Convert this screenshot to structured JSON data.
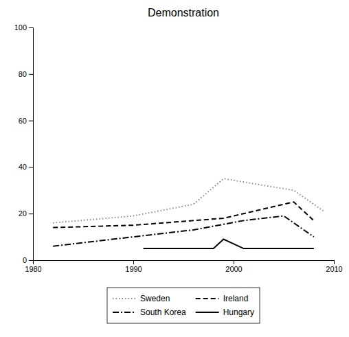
{
  "chart_data": {
    "type": "line",
    "title": "Demonstration",
    "xlim": [
      1980,
      2010
    ],
    "ylim": [
      0,
      100
    ],
    "xticks": [
      1980,
      1990,
      2000,
      2010
    ],
    "yticks": [
      0,
      20,
      40,
      60,
      80,
      100
    ],
    "grid": false,
    "legend": "bottom",
    "series": [
      {
        "name": "Sweden",
        "color": "#888888",
        "line_style": "dotted",
        "x": [
          1982,
          1990,
          1996,
          1999,
          2006,
          2009
        ],
        "values": [
          16,
          19,
          24,
          35,
          30,
          21
        ]
      },
      {
        "name": "Ireland",
        "color": "#000000",
        "line_style": "dashed",
        "x": [
          1982,
          1990,
          1999,
          2001,
          2006,
          2008
        ],
        "values": [
          14,
          15,
          18,
          20,
          25,
          17
        ]
      },
      {
        "name": "South Korea",
        "color": "#000000",
        "line_style": "dashdot",
        "x": [
          1982,
          1990,
          1996,
          2001,
          2005,
          2008
        ],
        "values": [
          6,
          10,
          13,
          17,
          19,
          10
        ]
      },
      {
        "name": "Hungary",
        "color": "#000000",
        "line_style": "solid",
        "x": [
          1991,
          1998,
          1999,
          2001,
          2005,
          2008
        ],
        "values": [
          5,
          5,
          9,
          5,
          5,
          5
        ]
      }
    ]
  }
}
